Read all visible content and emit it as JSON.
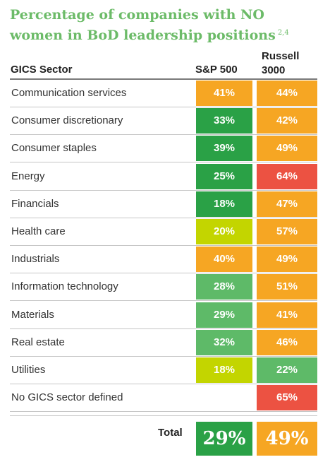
{
  "colors": {
    "title": "#6cbb68",
    "orange": "#f6a623",
    "dark_green": "#2aa146",
    "light_green": "#5eba68",
    "yellow_green": "#c3d500",
    "red": "#ec5242"
  },
  "chart_data": {
    "type": "table",
    "title": "Percentage of companies with NO women in BoD leadership positions",
    "title_footnote": "2,4",
    "columns": [
      "GICS Sector",
      "S&P 500",
      "Russell\n3000"
    ],
    "rows": [
      {
        "sector": "Communication services",
        "sp500": "41%",
        "russell3000": "44%",
        "sp500_color": "orange",
        "russell3000_color": "orange"
      },
      {
        "sector": "Consumer discretionary",
        "sp500": "33%",
        "russell3000": "42%",
        "sp500_color": "dark_green",
        "russell3000_color": "orange"
      },
      {
        "sector": "Consumer staples",
        "sp500": "39%",
        "russell3000": "49%",
        "sp500_color": "dark_green",
        "russell3000_color": "orange"
      },
      {
        "sector": "Energy",
        "sp500": "25%",
        "russell3000": "64%",
        "sp500_color": "dark_green",
        "russell3000_color": "red"
      },
      {
        "sector": "Financials",
        "sp500": "18%",
        "russell3000": "47%",
        "sp500_color": "dark_green",
        "russell3000_color": "orange"
      },
      {
        "sector": "Health care",
        "sp500": "20%",
        "russell3000": "57%",
        "sp500_color": "yellow_green",
        "russell3000_color": "orange"
      },
      {
        "sector": "Industrials",
        "sp500": "40%",
        "russell3000": "49%",
        "sp500_color": "orange",
        "russell3000_color": "orange"
      },
      {
        "sector": "Information technology",
        "sp500": "28%",
        "russell3000": "51%",
        "sp500_color": "light_green",
        "russell3000_color": "orange"
      },
      {
        "sector": "Materials",
        "sp500": "29%",
        "russell3000": "41%",
        "sp500_color": "light_green",
        "russell3000_color": "orange"
      },
      {
        "sector": "Real estate",
        "sp500": "32%",
        "russell3000": "46%",
        "sp500_color": "light_green",
        "russell3000_color": "orange"
      },
      {
        "sector": "Utilities",
        "sp500": "18%",
        "russell3000": "22%",
        "sp500_color": "yellow_green",
        "russell3000_color": "light_green"
      },
      {
        "sector": "No GICS sector defined",
        "sp500": "",
        "russell3000": "65%",
        "sp500_color": "",
        "russell3000_color": "red"
      }
    ],
    "total": {
      "label": "Total",
      "sp500": "29%",
      "russell3000": "49%",
      "sp500_color": "dark_green",
      "russell3000_color": "orange"
    }
  }
}
